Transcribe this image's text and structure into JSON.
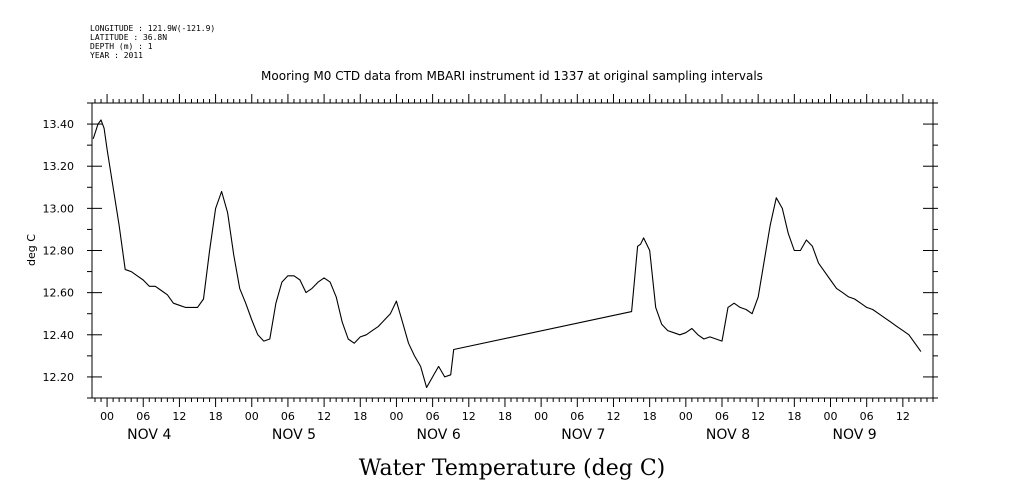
{
  "header": {
    "lines": [
      "LONGITUDE : 121.9W(-121.9)",
      "LATITUDE : 36.8N",
      "DEPTH (m) : 1",
      "YEAR : 2011"
    ]
  },
  "chart_data": {
    "type": "line",
    "title": "Mooring M0 CTD data from MBARI instrument id 1337 at original sampling intervals",
    "xlabel": "Water Temperature (deg C)",
    "ylabel": "deg C",
    "xlim_hours": [
      -2.5,
      137
    ],
    "ylim": [
      12.1,
      13.5
    ],
    "y_ticks": [
      12.2,
      12.4,
      12.6,
      12.8,
      13.0,
      13.2,
      13.4
    ],
    "y_tick_labels": [
      "12.20",
      "12.40",
      "12.60",
      "12.80",
      "13.00",
      "13.20",
      "13.40"
    ],
    "x_tick_labels": [
      "00",
      "06",
      "12",
      "18",
      "00",
      "06",
      "12",
      "18",
      "00",
      "06",
      "12",
      "18",
      "00",
      "06",
      "12",
      "18",
      "00",
      "06",
      "12",
      "18",
      "00",
      "06",
      "12"
    ],
    "day_labels": [
      {
        "label": "NOV  4",
        "hour": 7
      },
      {
        "label": "NOV  5",
        "hour": 31
      },
      {
        "label": "NOV  6",
        "hour": 55
      },
      {
        "label": "NOV  7",
        "hour": 79
      },
      {
        "label": "NOV  8",
        "hour": 103
      },
      {
        "label": "NOV  9",
        "hour": 124
      }
    ],
    "grid": false,
    "series": [
      {
        "color": "#000000",
        "x_hours_from_nov4_00": [
          -2.3,
          -1.5,
          -1,
          -0.5,
          0,
          1,
          2,
          3,
          4,
          5,
          6,
          7,
          8,
          9,
          10,
          11,
          12,
          13,
          14,
          15,
          16,
          17,
          18,
          19,
          20,
          21,
          22,
          23,
          24,
          25,
          26,
          27,
          28,
          29,
          30,
          31,
          32,
          33,
          34,
          35,
          36,
          37,
          38,
          39,
          40,
          41,
          42,
          43,
          44,
          45,
          46,
          47,
          48,
          49,
          50,
          51,
          52,
          53,
          54,
          55,
          56,
          57,
          57.5,
          87,
          88,
          88.5,
          89,
          90,
          91,
          92,
          93,
          94,
          95,
          96,
          97,
          98,
          99,
          100,
          101,
          102,
          103,
          104,
          105,
          106,
          107,
          108,
          109,
          110,
          111,
          112,
          113,
          114,
          115,
          116,
          117,
          118,
          119,
          120,
          121,
          122,
          123,
          124,
          125,
          126,
          127,
          128,
          129,
          130,
          131,
          132,
          133,
          134,
          135,
          136.5
        ],
        "values": [
          13.33,
          13.4,
          13.42,
          13.38,
          13.28,
          13.1,
          12.92,
          12.71,
          12.7,
          12.68,
          12.66,
          12.63,
          12.63,
          12.61,
          12.59,
          12.55,
          12.54,
          12.53,
          12.53,
          12.53,
          12.57,
          12.8,
          13.0,
          13.08,
          12.98,
          12.78,
          12.62,
          12.55,
          12.47,
          12.4,
          12.37,
          12.38,
          12.55,
          12.65,
          12.68,
          12.68,
          12.66,
          12.6,
          12.62,
          12.65,
          12.67,
          12.65,
          12.58,
          12.46,
          12.38,
          12.36,
          12.39,
          12.4,
          12.42,
          12.44,
          12.47,
          12.5,
          12.56,
          12.46,
          12.36,
          12.3,
          12.25,
          12.15,
          12.2,
          12.25,
          12.2,
          12.21,
          12.33,
          12.51,
          12.82,
          12.83,
          12.86,
          12.8,
          12.53,
          12.45,
          12.42,
          12.41,
          12.4,
          12.41,
          12.43,
          12.4,
          12.38,
          12.39,
          12.38,
          12.37,
          12.53,
          12.55,
          12.53,
          12.52,
          12.5,
          12.58,
          12.75,
          12.92,
          13.05,
          13.0,
          12.88,
          12.8,
          12.8,
          12.85,
          12.82,
          12.74,
          12.7,
          12.66,
          12.62,
          12.6,
          12.58,
          12.57,
          12.55,
          12.53,
          12.52,
          12.5,
          12.48,
          12.46,
          12.44,
          12.42,
          12.4,
          12.36,
          12.32
        ]
      }
    ]
  }
}
